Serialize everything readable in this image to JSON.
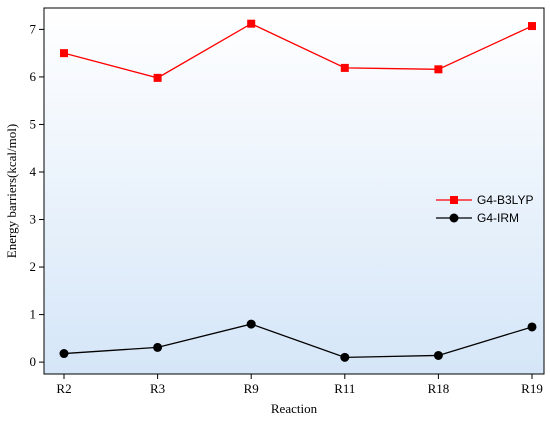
{
  "chart_data": {
    "type": "line",
    "categories": [
      "R2",
      "R3",
      "R9",
      "R11",
      "R18",
      "R19"
    ],
    "series": [
      {
        "name": "G4-B3LYP",
        "values": [
          6.5,
          5.98,
          7.12,
          6.19,
          6.16,
          7.07
        ],
        "color": "#ff0000",
        "marker": "square"
      },
      {
        "name": "G4-IRM",
        "values": [
          0.18,
          0.31,
          0.8,
          0.1,
          0.14,
          0.74
        ],
        "color": "#000000",
        "marker": "circle"
      }
    ],
    "xlabel": "Reaction",
    "ylabel": "Energy barriers(kcal/mol)",
    "ylim": [
      -0.25,
      7.45
    ],
    "yticks": [
      0,
      1,
      2,
      3,
      4,
      5,
      6,
      7
    ],
    "grid": false,
    "legend_position": "right",
    "background_gradient": [
      "#ffffff",
      "#d5e6f8"
    ]
  }
}
